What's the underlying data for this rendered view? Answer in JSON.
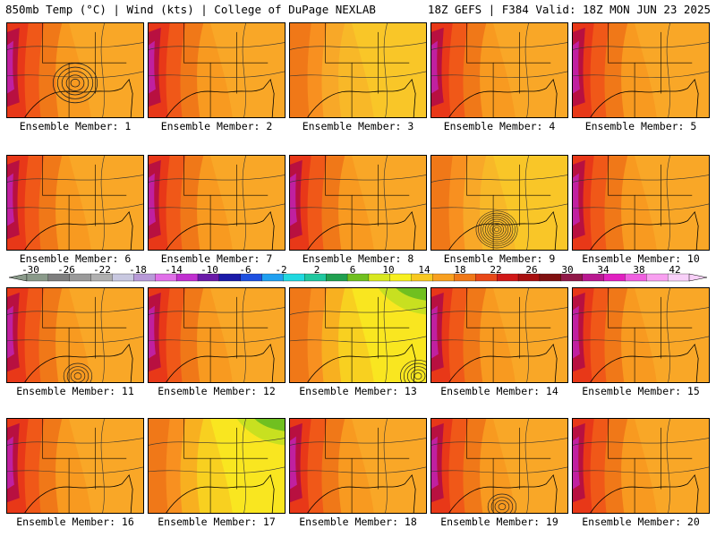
{
  "header": {
    "left": "850mb Temp (°C) | Wind (kts) | College of DuPage NEXLAB",
    "right": "18Z GEFS | F384 Valid: 18Z MON JUN 23 2025"
  },
  "colorbar": {
    "labels": [
      "-30",
      "-26",
      "-22",
      "-18",
      "-14",
      "-10",
      "-6",
      "-2",
      "2",
      "6",
      "10",
      "14",
      "18",
      "22",
      "26",
      "30",
      "34",
      "38",
      "42"
    ],
    "colors": [
      "#8a9a8a",
      "#7e7e7e",
      "#9a9a9a",
      "#b0b0b0",
      "#c8c8e0",
      "#b89ad8",
      "#e070e8",
      "#c030d0",
      "#6a1aa8",
      "#1a1aa8",
      "#1e50e0",
      "#20a0f0",
      "#20d8e0",
      "#20c8a0",
      "#20a050",
      "#70c020",
      "#d8e820",
      "#f8f020",
      "#f8c820",
      "#f8a020",
      "#f07818",
      "#e84818",
      "#d01818",
      "#a81010",
      "#801010",
      "#901848",
      "#b81890",
      "#e020c0",
      "#f060e0",
      "#f8a0f0",
      "#f8d0f8"
    ]
  },
  "members": [
    {
      "label": "Ensemble Member: 1",
      "palette": "hot",
      "contours": "low"
    },
    {
      "label": "Ensemble Member: 2",
      "palette": "hot",
      "contours": "plain"
    },
    {
      "label": "Ensemble Member: 3",
      "palette": "warm",
      "contours": "plain"
    },
    {
      "label": "Ensemble Member: 4",
      "palette": "hot",
      "contours": "plain"
    },
    {
      "label": "Ensemble Member: 5",
      "palette": "hot",
      "contours": "plain"
    },
    {
      "label": "Ensemble Member: 6",
      "palette": "hot",
      "contours": "plain"
    },
    {
      "label": "Ensemble Member: 7",
      "palette": "hot",
      "contours": "plain"
    },
    {
      "label": "Ensemble Member: 8",
      "palette": "hot",
      "contours": "plain"
    },
    {
      "label": "Ensemble Member: 9",
      "palette": "warm",
      "contours": "storm"
    },
    {
      "label": "Ensemble Member: 10",
      "palette": "hot",
      "contours": "plain"
    },
    {
      "label": "Ensemble Member: 11",
      "palette": "hot",
      "contours": "low-south"
    },
    {
      "label": "Ensemble Member: 12",
      "palette": "hot",
      "contours": "plain"
    },
    {
      "label": "Ensemble Member: 13",
      "palette": "cool",
      "contours": "low-se"
    },
    {
      "label": "Ensemble Member: 14",
      "palette": "hot",
      "contours": "plain"
    },
    {
      "label": "Ensemble Member: 15",
      "palette": "hot",
      "contours": "plain"
    },
    {
      "label": "Ensemble Member: 16",
      "palette": "hot",
      "contours": "plain"
    },
    {
      "label": "Ensemble Member: 17",
      "palette": "cool",
      "contours": "plain"
    },
    {
      "label": "Ensemble Member: 18",
      "palette": "hot",
      "contours": "plain"
    },
    {
      "label": "Ensemble Member: 19",
      "palette": "hot",
      "contours": "low-south"
    },
    {
      "label": "Ensemble Member: 20",
      "palette": "hot",
      "contours": "plain"
    }
  ]
}
